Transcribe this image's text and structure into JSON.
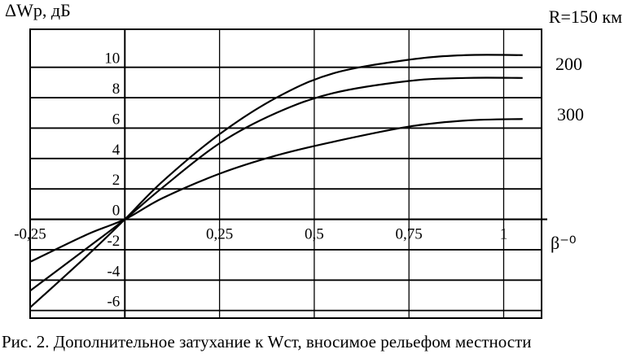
{
  "chart_data": {
    "type": "line",
    "title": "",
    "ylabel": "ΔWр, дБ",
    "xlabel": "β⁻⁰",
    "xlim": [
      -0.25,
      1.1
    ],
    "ylim": [
      -6.5,
      12.5
    ],
    "x_ticks": [
      {
        "value": -0.25,
        "label": "-0,25"
      },
      {
        "value": 0.25,
        "label": "0,25"
      },
      {
        "value": 0.5,
        "label": "0,5"
      },
      {
        "value": 0.75,
        "label": "0,75"
      },
      {
        "value": 1,
        "label": "1"
      }
    ],
    "y_ticks": [
      {
        "value": 10,
        "label": "10"
      },
      {
        "value": 8,
        "label": "8"
      },
      {
        "value": 6,
        "label": "6"
      },
      {
        "value": 4,
        "label": "4"
      },
      {
        "value": 2,
        "label": "2"
      },
      {
        "value": 0,
        "label": "0"
      },
      {
        "value": -2,
        "label": "-2"
      },
      {
        "value": -4,
        "label": "-4"
      },
      {
        "value": -6,
        "label": "-6"
      }
    ],
    "grid": true,
    "series": [
      {
        "name": "R=150 км",
        "x": [
          -0.25,
          -0.1,
          0,
          0.1,
          0.25,
          0.4,
          0.55,
          0.75,
          0.9,
          1.05
        ],
        "y": [
          -5.8,
          -2.4,
          0,
          2.5,
          5.6,
          8.0,
          9.6,
          10.5,
          10.8,
          10.8
        ]
      },
      {
        "name": "200",
        "x": [
          -0.25,
          -0.1,
          0,
          0.1,
          0.25,
          0.4,
          0.55,
          0.75,
          0.9,
          1.05
        ],
        "y": [
          -4.7,
          -1.9,
          0,
          2.1,
          5.0,
          7.0,
          8.3,
          9.1,
          9.3,
          9.3
        ]
      },
      {
        "name": "300",
        "x": [
          -0.25,
          -0.1,
          0,
          0.1,
          0.25,
          0.4,
          0.55,
          0.75,
          0.9,
          1.05
        ],
        "y": [
          -2.8,
          -1.0,
          0,
          1.4,
          3.0,
          4.2,
          5.1,
          6.1,
          6.5,
          6.6
        ]
      }
    ]
  },
  "caption": "Рис. 2. Дополнительное затухание к Wст, вносимое рельефом местности"
}
